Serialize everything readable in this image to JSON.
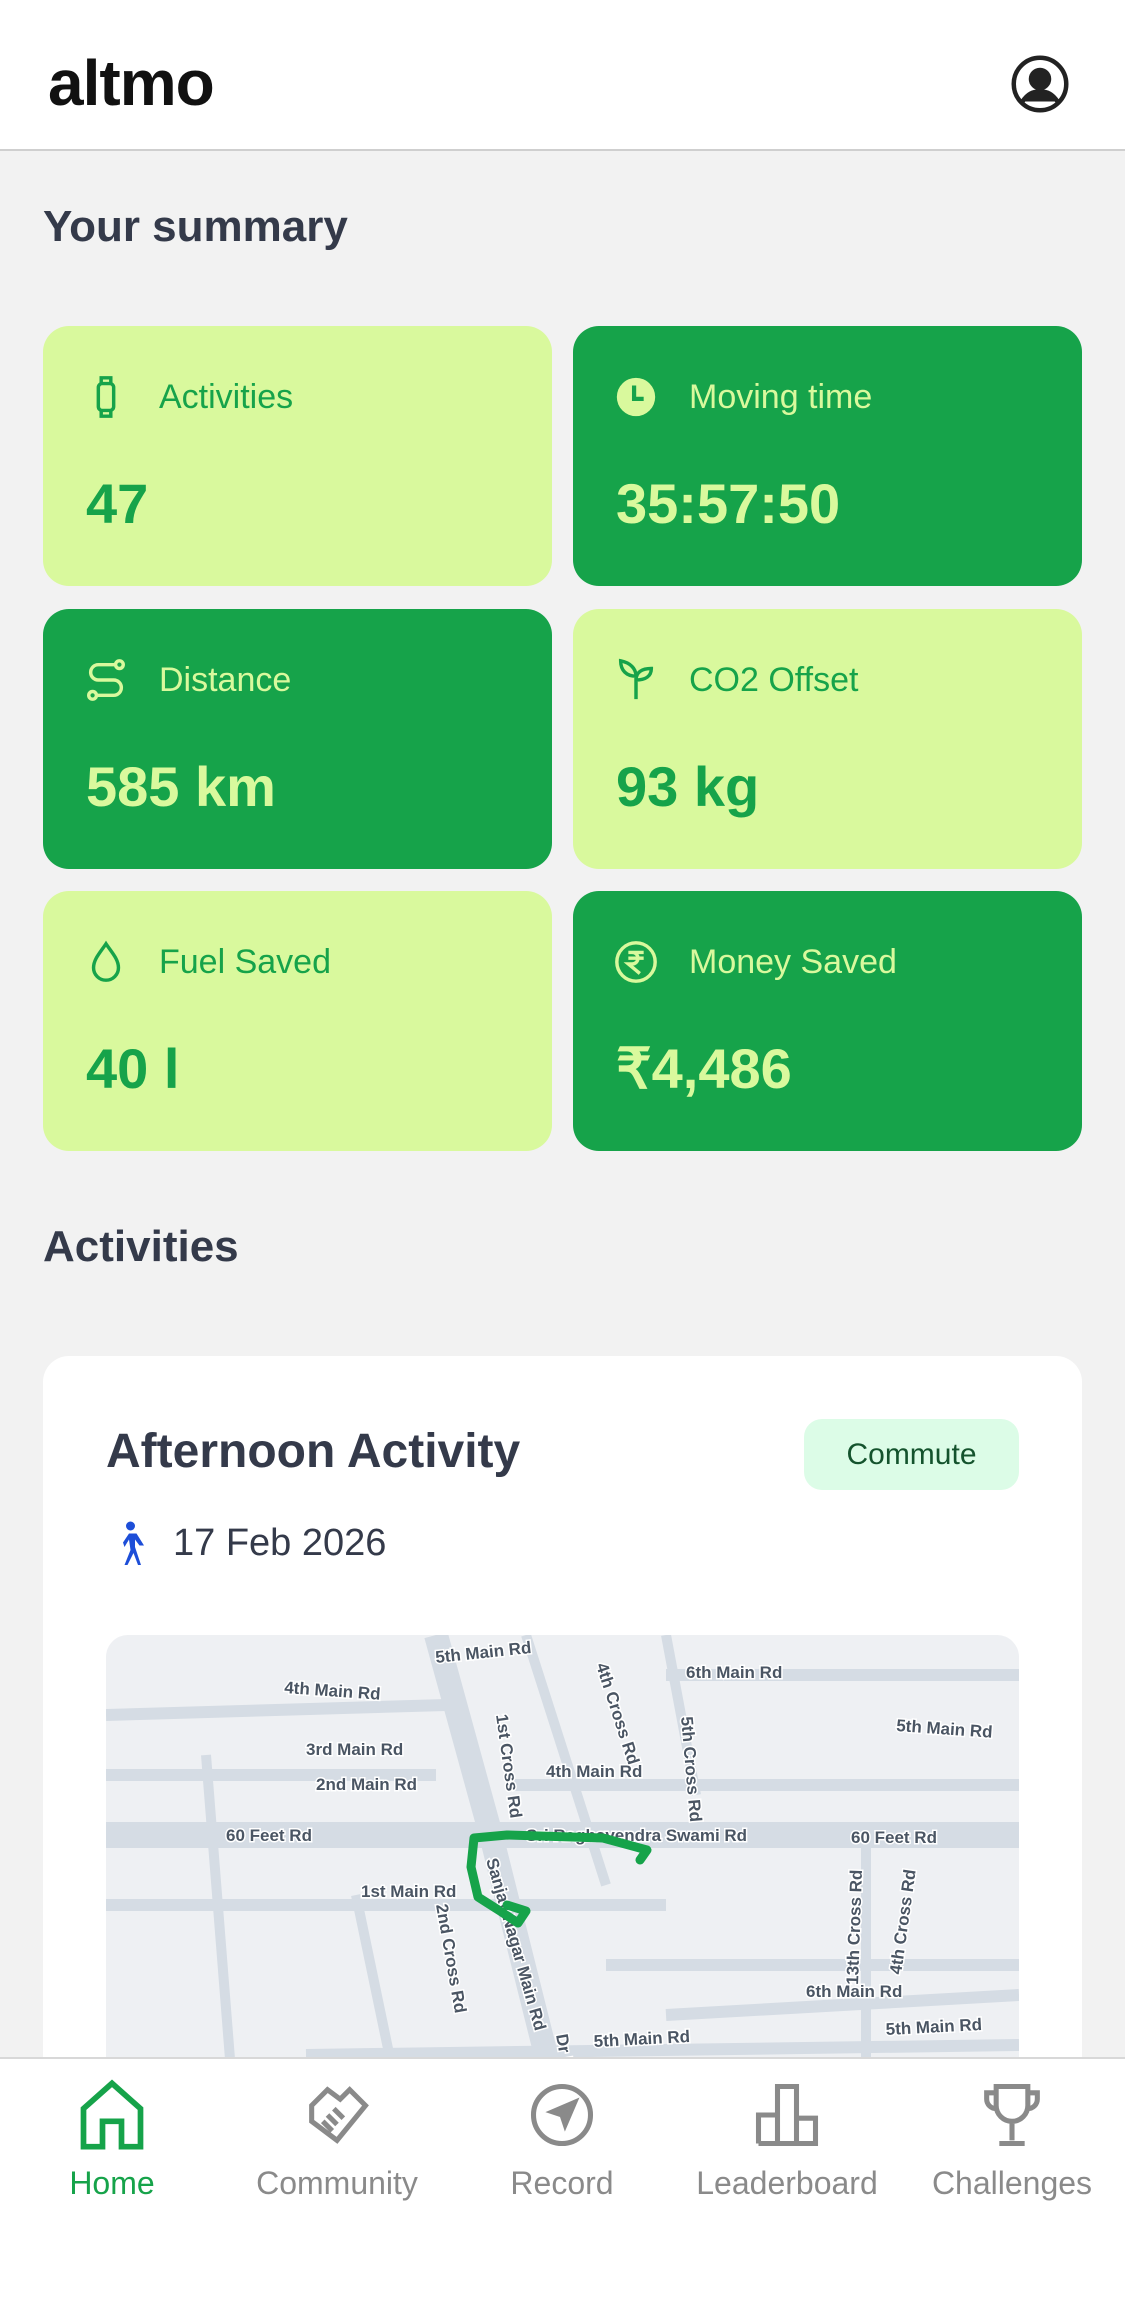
{
  "header": {
    "logo": "altmo",
    "profile_icon": "user-circle-icon"
  },
  "summary": {
    "title": "Your summary",
    "cards": [
      {
        "label": "Activities",
        "value": "47",
        "icon": "smartwatch-icon",
        "style": "light"
      },
      {
        "label": "Moving time",
        "value": "35:57:50",
        "icon": "clock-icon",
        "style": "dark"
      },
      {
        "label": "Distance",
        "value": "585 km",
        "icon": "route-icon",
        "style": "dark"
      },
      {
        "label": "CO2 Offset",
        "value": "93 kg",
        "icon": "sprout-icon",
        "style": "light"
      },
      {
        "label": "Fuel Saved",
        "value": "40 l",
        "icon": "droplet-icon",
        "style": "light"
      },
      {
        "label": "Money Saved",
        "value": "₹4,486",
        "icon": "rupee-icon",
        "style": "dark"
      }
    ]
  },
  "activities": {
    "title": "Activities",
    "items": [
      {
        "title": "Afternoon Activity",
        "badge": "Commute",
        "date": "17 Feb 2026",
        "icon": "walking-icon",
        "map_labels": [
          "5th Main Rd",
          "4th Main Rd",
          "4th Cross Rd",
          "6th Main Rd",
          "5th Main Rd",
          "3rd Main Rd",
          "1st Cross Rd",
          "5th Cross Rd",
          "4th Main Rd",
          "2nd Main Rd",
          "60 Feet Rd",
          "Sri Raghavendra Swami Rd",
          "60 Feet Rd",
          "1st Main Rd",
          "Sanjay Nagar Main Rd",
          "2nd Cross Rd",
          "13th Cross Rd",
          "4th Cross Rd",
          "6th Main Rd",
          "5th Main Rd",
          "5th Main Rd",
          "Dr R"
        ]
      }
    ]
  },
  "nav": [
    {
      "label": "Home",
      "icon": "home-icon",
      "active": true
    },
    {
      "label": "Community",
      "icon": "handshake-icon"
    },
    {
      "label": "Record",
      "icon": "navigation-icon"
    },
    {
      "label": "Leaderboard",
      "icon": "leaderboard-icon"
    },
    {
      "label": "Challenges",
      "icon": "trophy-icon"
    }
  ],
  "colors": {
    "primary": "#16a34a",
    "light": "#d9f99d",
    "text": "#343a4a",
    "badge_bg": "#dcfce7",
    "route": "#16a34a",
    "walk_icon": "#1d4ed8"
  }
}
